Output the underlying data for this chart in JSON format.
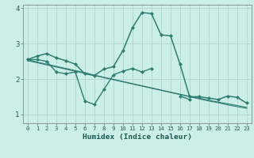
{
  "title": "",
  "xlabel": "Humidex (Indice chaleur)",
  "ylabel": "",
  "background_color": "#cceee8",
  "line_color": "#2d7d72",
  "xlim": [
    -0.5,
    23.5
  ],
  "ylim": [
    0.75,
    4.1
  ],
  "yticks": [
    1,
    2,
    3,
    4
  ],
  "xticks": [
    0,
    1,
    2,
    3,
    4,
    5,
    6,
    7,
    8,
    9,
    10,
    11,
    12,
    13,
    14,
    15,
    16,
    17,
    18,
    19,
    20,
    21,
    22,
    23
  ],
  "grid_color": "#aacccc",
  "series": [
    {
      "x": [
        0,
        1,
        2,
        3,
        4,
        5,
        6,
        7,
        8,
        9,
        10,
        11,
        12,
        13,
        14,
        15,
        16,
        17,
        18,
        19,
        20,
        21,
        22,
        23
      ],
      "y": [
        2.55,
        2.65,
        2.72,
        2.6,
        2.52,
        2.42,
        2.15,
        2.1,
        2.28,
        2.35,
        2.8,
        3.45,
        3.88,
        3.85,
        3.25,
        3.22,
        2.42,
        1.5,
        1.5,
        1.46,
        1.42,
        1.52,
        1.48,
        1.32
      ],
      "color": "#2d7d72",
      "linewidth": 1.1,
      "marker": "D",
      "markersize": 2.0
    },
    {
      "x": [
        0,
        1,
        2,
        3,
        4,
        5,
        6,
        7,
        8,
        9,
        10,
        11,
        12,
        13,
        14,
        15,
        16,
        17,
        18,
        19,
        20,
        21,
        22,
        23
      ],
      "y": [
        2.55,
        2.55,
        2.5,
        2.2,
        2.15,
        2.2,
        1.38,
        1.28,
        1.7,
        2.12,
        2.22,
        2.3,
        2.2,
        2.3,
        null,
        null,
        1.52,
        1.42,
        null,
        null,
        null,
        null,
        null,
        null
      ],
      "color": "#2d7d72",
      "linewidth": 1.0,
      "marker": "D",
      "markersize": 2.0
    },
    {
      "x": [
        0,
        1,
        2,
        3,
        4,
        5,
        6,
        7,
        8,
        9,
        10,
        11,
        12,
        13,
        14,
        15,
        16,
        17,
        18,
        19,
        20,
        21,
        22,
        23
      ],
      "y": [
        2.55,
        2.48,
        2.42,
        2.36,
        2.3,
        2.24,
        2.18,
        2.11,
        2.05,
        1.99,
        1.93,
        1.87,
        1.81,
        1.75,
        1.69,
        1.63,
        1.57,
        1.51,
        1.46,
        1.4,
        1.35,
        1.3,
        1.25,
        1.2
      ],
      "color": "#2d7d72",
      "linewidth": 0.8,
      "marker": null,
      "markersize": 0
    },
    {
      "x": [
        0,
        1,
        2,
        3,
        4,
        5,
        6,
        7,
        8,
        9,
        10,
        11,
        12,
        13,
        14,
        15,
        16,
        17,
        18,
        19,
        20,
        21,
        22,
        23
      ],
      "y": [
        2.52,
        2.46,
        2.4,
        2.34,
        2.28,
        2.22,
        2.16,
        2.1,
        2.04,
        1.98,
        1.92,
        1.86,
        1.8,
        1.74,
        1.68,
        1.62,
        1.56,
        1.5,
        1.44,
        1.38,
        1.33,
        1.27,
        1.22,
        1.17
      ],
      "color": "#2d7d72",
      "linewidth": 0.8,
      "marker": null,
      "markersize": 0
    }
  ]
}
